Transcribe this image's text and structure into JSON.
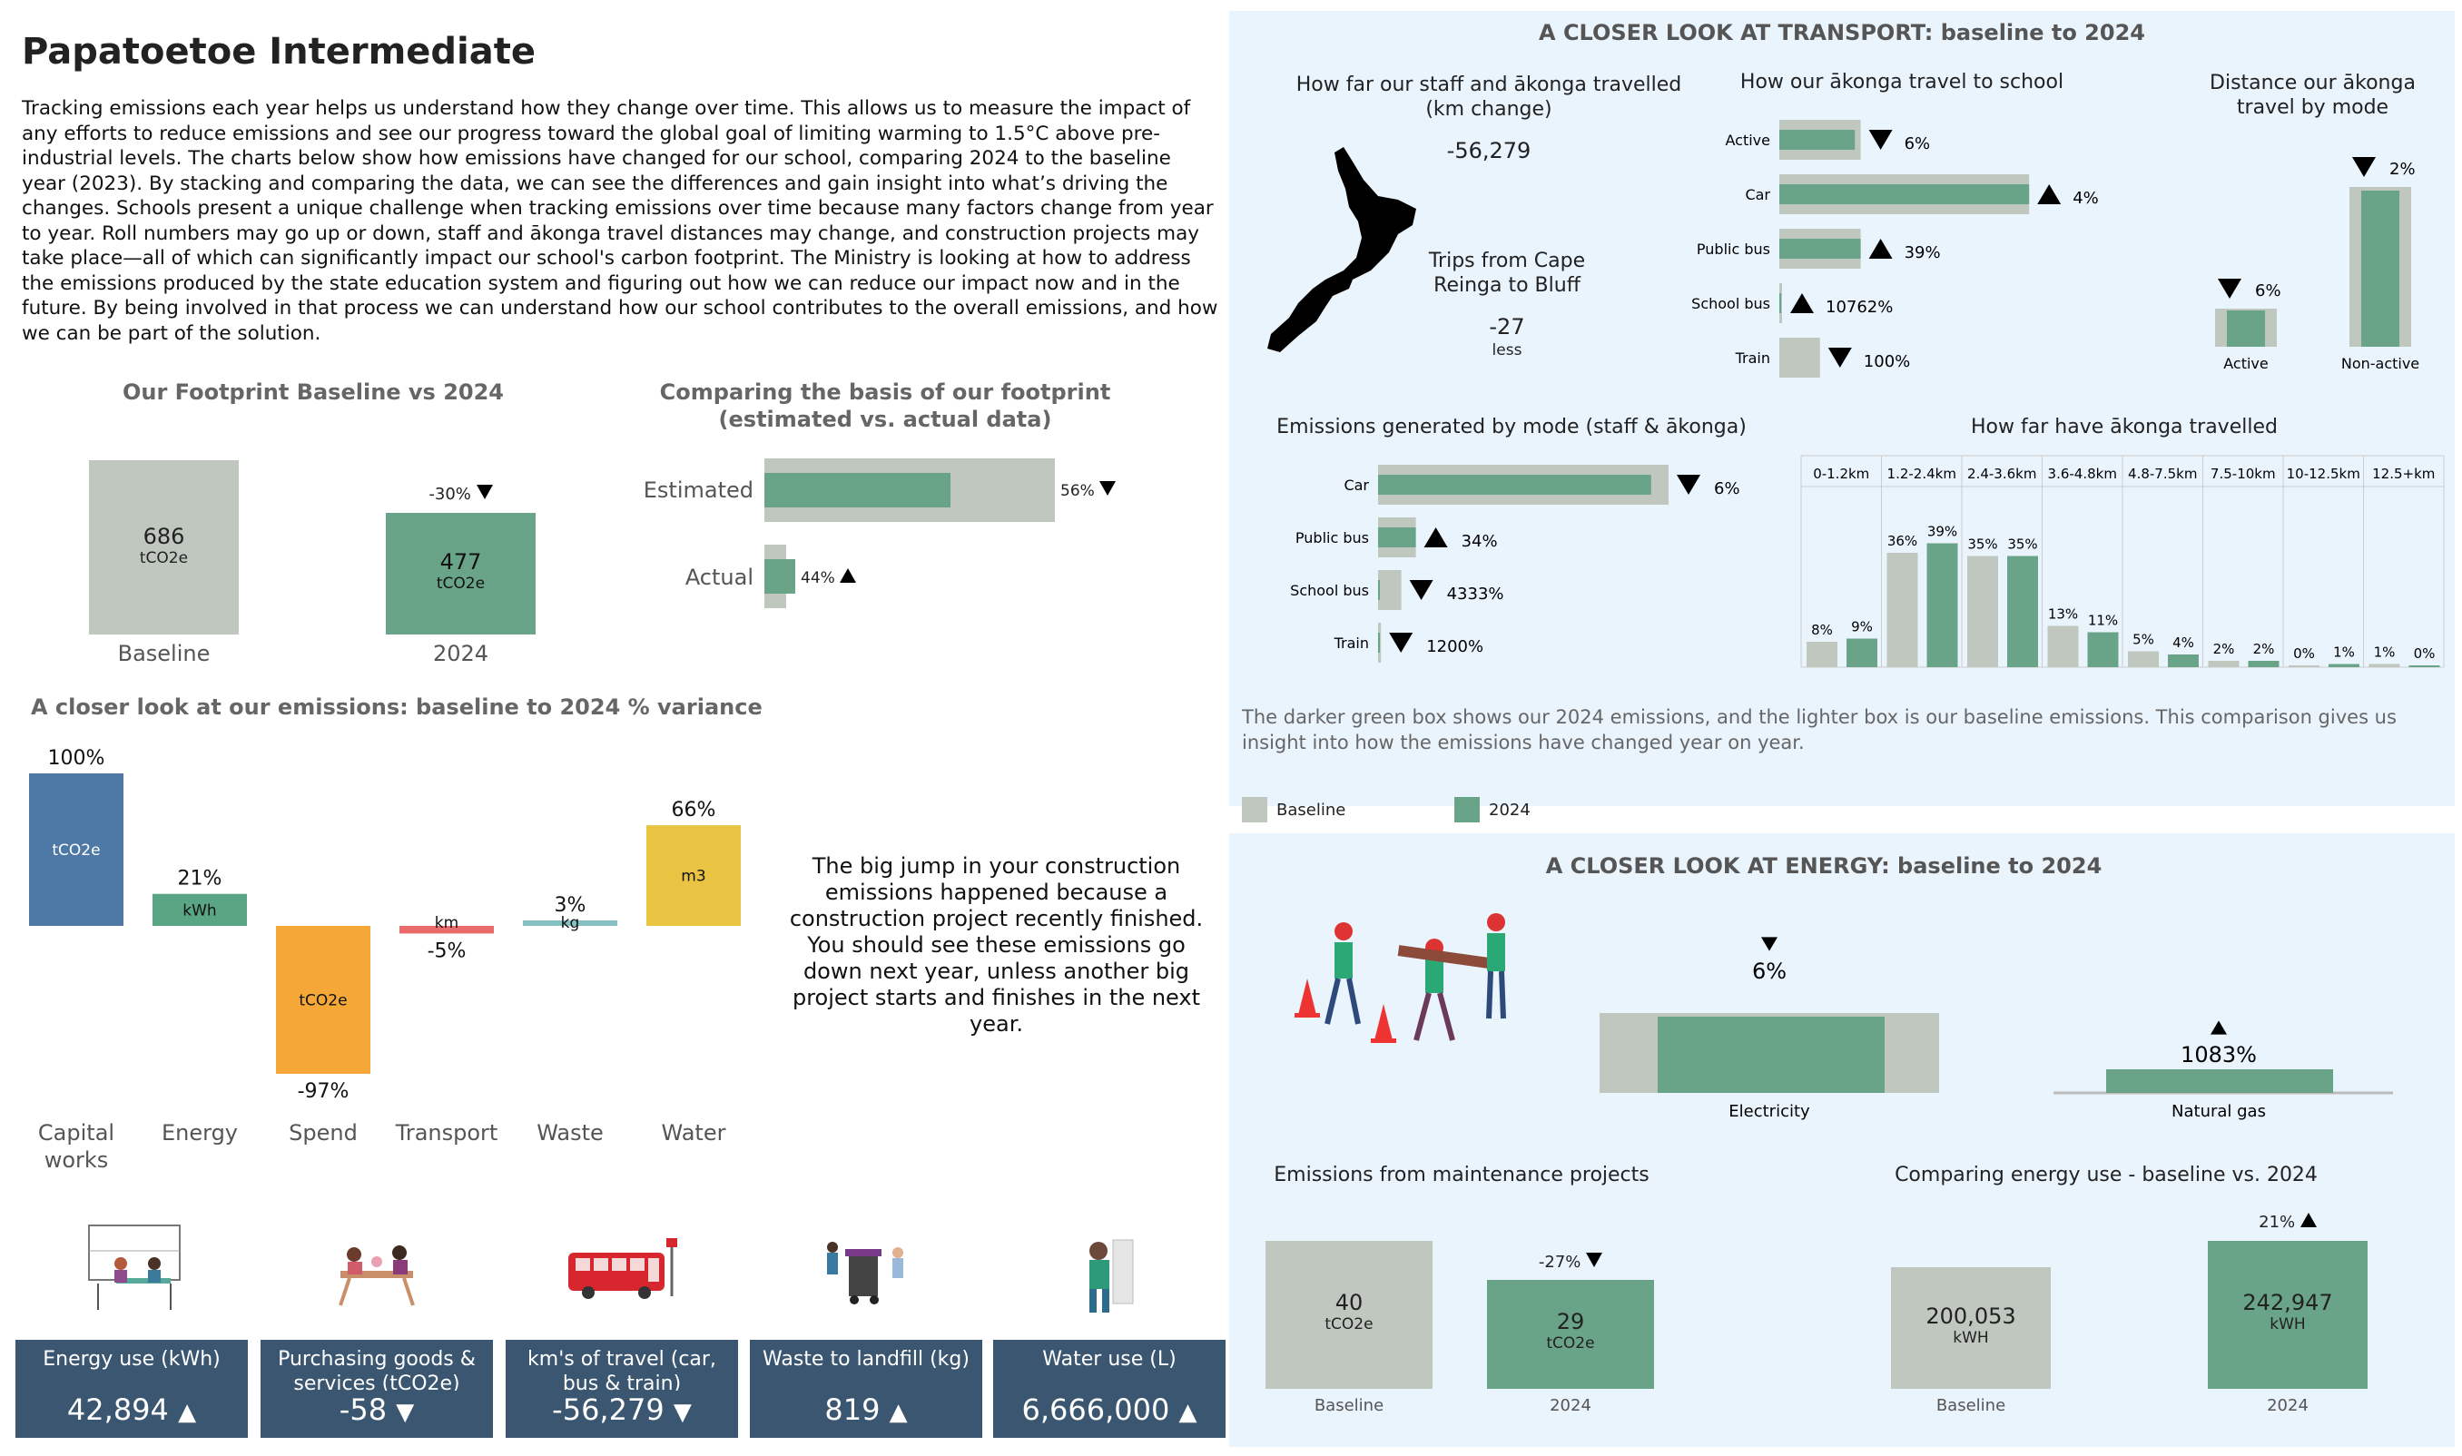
{
  "page": {
    "title": "Papatoetoe Intermediate",
    "intro": "Tracking emissions each year helps us understand how they change over time. This allows us to measure the impact of any efforts to reduce emissions and see our progress toward the global goal of limiting warming to 1.5°C above pre-industrial levels. The charts below show how emissions have changed for our school, comparing 2024 to the baseline year (2023). By stacking and comparing the data, we can see the differences and gain insight into what’s driving the changes. Schools present a unique challenge when tracking emissions over time because many factors change from year to year. Roll numbers may go up or down, staff and ākonga travel distances may change, and construction projects may take place—all of which can significantly impact our school's carbon footprint. The Ministry is looking at how to address the emissions produced by the state education system and figuring out how we can reduce our impact now and in the future. By being involved in that process we can understand how our school contributes to the overall emissions, and how we can be part of the solution."
  },
  "footprint": {
    "title": "Our Footprint Baseline vs 2024",
    "baseline_value": "686",
    "baseline_unit": "tCO2e",
    "baseline_label": "Baseline",
    "y2024_value": "477",
    "y2024_unit": "tCO2e",
    "y2024_label": "2024",
    "change": "-30%"
  },
  "basis": {
    "title_line1": "Comparing the basis of our footprint",
    "title_line2": "(estimated vs. actual data)",
    "estimated_label": "Estimated",
    "estimated_change": "56%",
    "actual_label": "Actual",
    "actual_change": "44%"
  },
  "variance": {
    "title": "A closer look at our emissions: baseline to 2024 % variance",
    "note": "The big jump in your construction emissions happened because a construction project recently finished. You should see these emissions go down next year, unless another big project starts and finishes in the next year."
  },
  "cards": [
    {
      "label": "Energy use (kWh)",
      "value": "42,894",
      "arrow": "up"
    },
    {
      "label": "Purchasing goods & services (tCO2e)",
      "value": "-58",
      "arrow": "down"
    },
    {
      "label": "km's of travel (car, bus & train)",
      "value": "-56,279",
      "arrow": "down"
    },
    {
      "label": "Waste to landfill (kg)",
      "value": "819",
      "arrow": "up"
    },
    {
      "label": "Water use (L)",
      "value": "6,666,000",
      "arrow": "up"
    }
  ],
  "transport": {
    "title": "A CLOSER LOOK AT TRANSPORT: baseline to 2024",
    "km_title": "How far our staff and ākonga travelled (km change)",
    "km_value": "-56,279",
    "trips_title": "Trips from Cape Reinga to Bluff",
    "trips_value": "-27",
    "trips_sub": "less",
    "howtravel_title": "How our ākonga travel to school",
    "distance_title": "Distance our ākonga travel by mode",
    "emissions_title": "Emissions generated by mode (staff & ākonga)",
    "howfar_title": "How far have ākonga travelled",
    "caption": "The darker green box shows our 2024 emissions, and the lighter box is our baseline emissions. This comparison gives us insight into how the emissions have changed year on year.",
    "legend_baseline": "Baseline",
    "legend_2024": "2024"
  },
  "energy": {
    "title": "A CLOSER LOOK AT ENERGY: baseline to 2024",
    "electricity_label": "Electricity",
    "electricity_change": "6%",
    "gas_label": "Natural gas",
    "gas_change": "1083%",
    "maint_title": "Emissions from maintenance projects",
    "maint_baseline_value": "40",
    "maint_baseline_unit": "tCO2e",
    "maint_baseline_label": "Baseline",
    "maint_2024_value": "29",
    "maint_2024_unit": "tCO2e",
    "maint_2024_label": "2024",
    "maint_change": "-27%",
    "use_title": "Comparing energy use - baseline vs. 2024",
    "use_baseline_value": "200,053",
    "use_baseline_unit": "kWH",
    "use_baseline_label": "Baseline",
    "use_2024_value": "242,947",
    "use_2024_unit": "kWH",
    "use_2024_label": "2024",
    "use_change": "21%"
  },
  "colors": {
    "baseline": "#bfc7bf",
    "y2024": "#6aa488",
    "capital": "#4e79a7",
    "energy": "#59a584",
    "spend": "#f5a838",
    "transport": "#e96b6b",
    "waste": "#85c0c3",
    "water": "#e8c442",
    "card": "#3a5670",
    "panel": "#eaf4fd"
  },
  "chart_data": [
    {
      "type": "bar",
      "title": "A closer look at our emissions: baseline to 2024 % variance",
      "categories": [
        "Capital works",
        "Energy",
        "Spend",
        "Transport",
        "Waste",
        "Water"
      ],
      "values": [
        100,
        21,
        -97,
        -5,
        3,
        66
      ],
      "value_labels": [
        "100%",
        "21%",
        "-97%",
        "-5%",
        "3%",
        "66%"
      ],
      "units": [
        "tCO2e",
        "kWh",
        "tCO2e",
        "km",
        "kg",
        "m3"
      ],
      "ylim": [
        -100,
        100
      ]
    },
    {
      "type": "bar",
      "title": "How our ākonga travel to school",
      "orientation": "horizontal",
      "categories": [
        "Active",
        "Car",
        "Public bus",
        "School bus",
        "Train"
      ],
      "series": [
        {
          "name": "Baseline",
          "values": [
            28,
            86,
            28,
            0.3,
            14
          ]
        },
        {
          "name": "2024",
          "values": [
            26,
            86,
            28,
            0.3,
            0
          ]
        }
      ],
      "changes": [
        "6%",
        "4%",
        "39%",
        "10762%",
        "100%"
      ],
      "arrows": [
        "down",
        "up",
        "up",
        "up",
        "down"
      ]
    },
    {
      "type": "bar",
      "title": "Distance our ākonga travel by mode",
      "categories": [
        "Active",
        "Non-active"
      ],
      "series": [
        {
          "name": "Baseline",
          "values": [
            21,
            88
          ]
        },
        {
          "name": "2024",
          "values": [
            20,
            86
          ]
        }
      ],
      "changes": [
        "6%",
        "2%"
      ],
      "arrows": [
        "down",
        "down"
      ]
    },
    {
      "type": "bar",
      "title": "Emissions generated by mode (staff & ākonga)",
      "orientation": "horizontal",
      "categories": [
        "Car",
        "Public bus",
        "School bus",
        "Train"
      ],
      "series": [
        {
          "name": "Baseline",
          "values": [
            100,
            13,
            8,
            1
          ]
        },
        {
          "name": "2024",
          "values": [
            94,
            13,
            0.5,
            0.3
          ]
        }
      ],
      "changes": [
        "6%",
        "34%",
        "4333%",
        "1200%"
      ],
      "arrows": [
        "down",
        "up",
        "down",
        "down"
      ]
    },
    {
      "type": "bar",
      "title": "How far have ākonga travelled",
      "categories": [
        "0-1.2km",
        "1.2-2.4km",
        "2.4-3.6km",
        "3.6-4.8km",
        "4.8-7.5km",
        "7.5-10km",
        "10-12.5km",
        "12.5+km"
      ],
      "series": [
        {
          "name": "Baseline",
          "values": [
            8,
            36,
            35,
            13,
            5,
            2,
            0,
            1
          ]
        },
        {
          "name": "2024",
          "values": [
            9,
            39,
            35,
            11,
            4,
            2,
            1,
            0
          ]
        }
      ],
      "value_labels_baseline": [
        "8%",
        "36%",
        "35%",
        "13%",
        "5%",
        "2%",
        "0%",
        "1%"
      ],
      "value_labels_2024": [
        "9%",
        "39%",
        "35%",
        "11%",
        "4%",
        "2%",
        "1%",
        "0%"
      ]
    },
    {
      "type": "bar",
      "title": "Our Footprint Baseline vs 2024",
      "categories": [
        "Baseline",
        "2024"
      ],
      "values": [
        686,
        477
      ]
    },
    {
      "type": "bar",
      "title": "Comparing the basis of our footprint (estimated vs. actual data)",
      "orientation": "horizontal",
      "categories": [
        "Estimated",
        "Actual"
      ],
      "series": [
        {
          "name": "Baseline",
          "values": [
            100,
            11
          ]
        },
        {
          "name": "2024",
          "values": [
            70,
            11
          ]
        }
      ]
    },
    {
      "type": "bar",
      "title": "Energy: Electricity / Natural gas",
      "categories": [
        "Electricity",
        "Natural gas"
      ],
      "series": [
        {
          "name": "Baseline",
          "values": [
            90,
            2
          ]
        },
        {
          "name": "2024",
          "values": [
            85,
            24
          ]
        }
      ]
    }
  ]
}
